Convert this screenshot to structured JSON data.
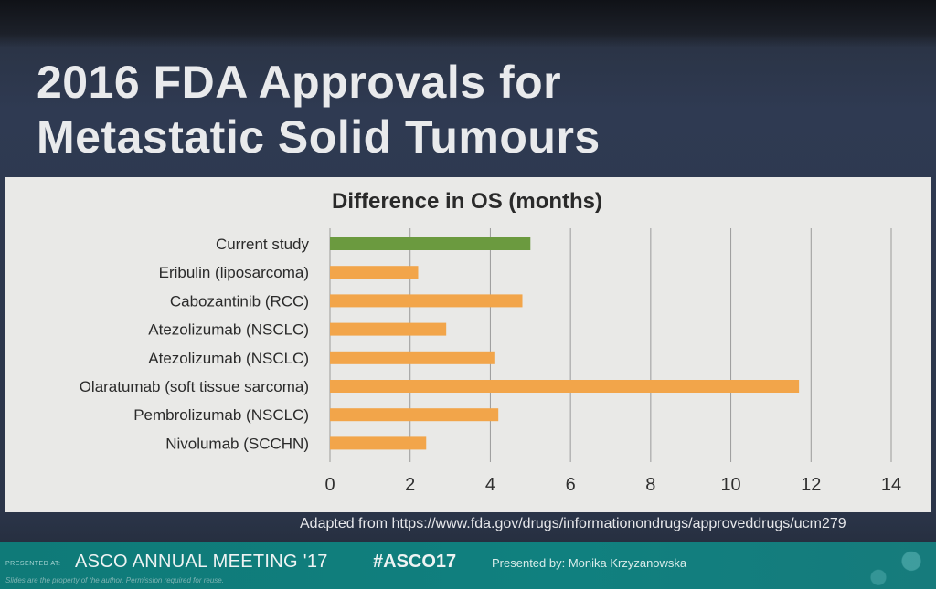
{
  "slide": {
    "title_line1": "2016 FDA Approvals for",
    "title_line2": "Metastatic Solid Tumours",
    "source_note": "Adapted from https://www.fda.gov/drugs/informationondrugs/approveddrugs/ucm279",
    "footer": {
      "presented_at": "PRESENTED AT:",
      "meeting": "ASCO ANNUAL MEETING '17",
      "hashtag": "#ASCO17",
      "presenter": "Presented by: Monika Krzyzanowska",
      "disclaimer": "Slides are the property of the author. Permission required for reuse."
    }
  },
  "chart_data": {
    "type": "bar",
    "orientation": "horizontal",
    "title": "Difference in OS (months)",
    "xlabel": "",
    "ylabel": "",
    "categories": [
      "Current study",
      "Eribulin (liposarcoma)",
      "Cabozantinib (RCC)",
      "Atezolizumab (NSCLC)",
      "Atezolizumab (NSCLC)",
      "Olaratumab (soft tissue sarcoma)",
      "Pembrolizumab (NSCLC)",
      "Nivolumab (SCCHN)"
    ],
    "values": [
      5.0,
      2.2,
      4.8,
      2.9,
      4.1,
      11.7,
      4.2,
      2.4
    ],
    "bar_colors": [
      "#6b9a3f",
      "#f2a54a",
      "#f2a54a",
      "#f2a54a",
      "#f2a54a",
      "#f2a54a",
      "#f2a54a",
      "#f2a54a"
    ],
    "xlim": [
      0,
      14
    ],
    "x_ticks": [
      "0",
      "2",
      "4",
      "6",
      "8",
      "10",
      "12",
      "14"
    ],
    "grid": "vertical",
    "legend": "none"
  }
}
